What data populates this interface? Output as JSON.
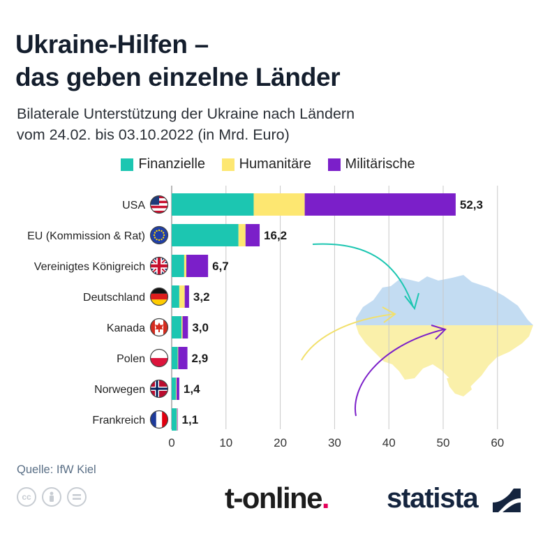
{
  "title_line1": "Ukraine-Hilfen –",
  "title_line2": "das geben einzelne Länder",
  "subtitle_line1": "Bilaterale Unterstützung der Ukraine nach Ländern",
  "subtitle_line2": "vom 24.02. bis 03.10.2022 (in Mrd. Euro)",
  "colors": {
    "finanzielle": "#1cc6b1",
    "humanitaere": "#fde771",
    "militaerische": "#7b1fc9",
    "map_north": "#c3dcf2",
    "map_south": "#faf0aa",
    "grid": "#c8c8c8",
    "text": "#1a1a1a"
  },
  "legend": [
    {
      "label": "Finanzielle",
      "color": "#1cc6b1"
    },
    {
      "label": "Humanitäre",
      "color": "#fde771"
    },
    {
      "label": "Militärische",
      "color": "#7b1fc9"
    }
  ],
  "chart_data": {
    "type": "bar",
    "orientation": "horizontal",
    "stacked": true,
    "categories": [
      "USA",
      "EU (Kommission & Rat)",
      "Vereinigtes Königreich",
      "Deutschland",
      "Kanada",
      "Polen",
      "Norwegen",
      "Frankreich"
    ],
    "flags": [
      "us-flag-icon",
      "eu-flag-icon",
      "uk-flag-icon",
      "germany-flag-icon",
      "canada-flag-icon",
      "poland-flag-icon",
      "norway-flag-icon",
      "france-flag-icon"
    ],
    "series": [
      {
        "name": "Finanzielle",
        "color": "#1cc6b1",
        "values": [
          15.1,
          12.3,
          2.3,
          1.4,
          1.8,
          1.1,
          0.8,
          0.9
        ]
      },
      {
        "name": "Humanitäre",
        "color": "#fde771",
        "values": [
          9.4,
          1.3,
          0.4,
          1.0,
          0.2,
          0.1,
          0.1,
          0.1
        ]
      },
      {
        "name": "Militärische",
        "color": "#7b1fc9",
        "values": [
          27.8,
          2.6,
          4.0,
          0.8,
          1.0,
          1.7,
          0.5,
          0.1
        ]
      }
    ],
    "totals": [
      "52,3",
      "16,2",
      "6,7",
      "3,2",
      "3,0",
      "2,9",
      "1,4",
      "1,1"
    ],
    "xticks": [
      "0",
      "10",
      "20",
      "30",
      "40",
      "50",
      "60"
    ],
    "xlim": [
      0,
      66
    ],
    "grid": true,
    "legend_position": "top"
  },
  "source": "Quelle: IfW Kiel",
  "license_icons": [
    "cc-icon",
    "attribution-icon",
    "no-derivatives-icon"
  ],
  "brand1_main": "t-online",
  "brand1_dot": ".",
  "brand2": "statista"
}
